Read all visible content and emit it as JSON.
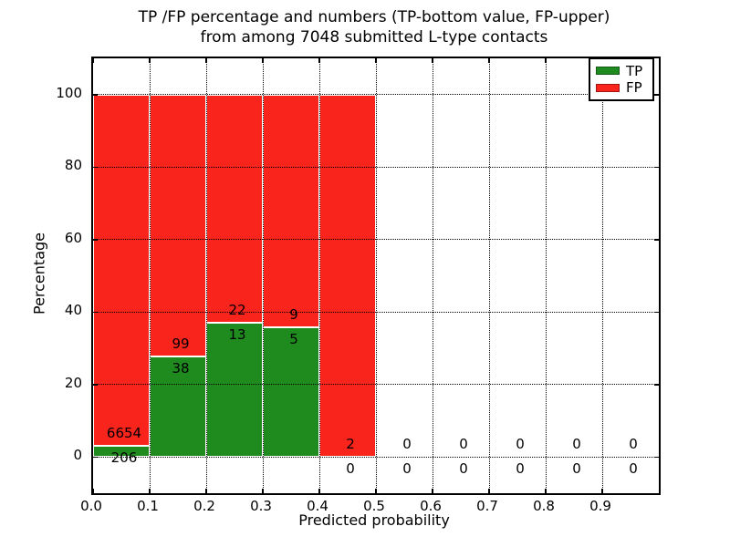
{
  "header": {
    "title_line1": "TP /FP percentage and numbers (TP-bottom value, FP-upper)",
    "title_line2": "from among 7048 submitted L-type contacts"
  },
  "chart_data": {
    "type": "bar",
    "stacked": true,
    "percentage_mode": true,
    "title": "TP /FP percentage and numbers (TP-bottom value, FP-upper) from among 7048 submitted L-type contacts",
    "xlabel": "Predicted probability",
    "ylabel": "Percentage",
    "xlim": [
      0.0,
      1.0
    ],
    "ylim": [
      -10,
      110
    ],
    "xtick_labels": [
      "0.0",
      "0.1",
      "0.2",
      "0.3",
      "0.4",
      "0.5",
      "0.6",
      "0.7",
      "0.8",
      "0.9"
    ],
    "xtick_values": [
      0.0,
      0.1,
      0.2,
      0.3,
      0.4,
      0.5,
      0.6,
      0.7,
      0.8,
      0.9
    ],
    "ytick_values": [
      0,
      20,
      40,
      60,
      80,
      100
    ],
    "bin_width": 0.1,
    "categories": [
      "0.0-0.1",
      "0.1-0.2",
      "0.2-0.3",
      "0.3-0.4",
      "0.4-0.5",
      "0.5-0.6",
      "0.6-0.7",
      "0.7-0.8",
      "0.8-0.9",
      "0.9-1.0"
    ],
    "series": [
      {
        "name": "TP",
        "color": "#1f8b1f",
        "counts": [
          206,
          38,
          13,
          5,
          0,
          0,
          0,
          0,
          0,
          0
        ]
      },
      {
        "name": "FP",
        "color": "#f9241c",
        "counts": [
          6654,
          99,
          22,
          9,
          2,
          0,
          0,
          0,
          0,
          0
        ]
      }
    ],
    "tp_percent": [
      3.0,
      27.7,
      37.1,
      35.7,
      0,
      0,
      0,
      0,
      0,
      0
    ],
    "legend_position": "upper right",
    "grid": "dotted"
  }
}
